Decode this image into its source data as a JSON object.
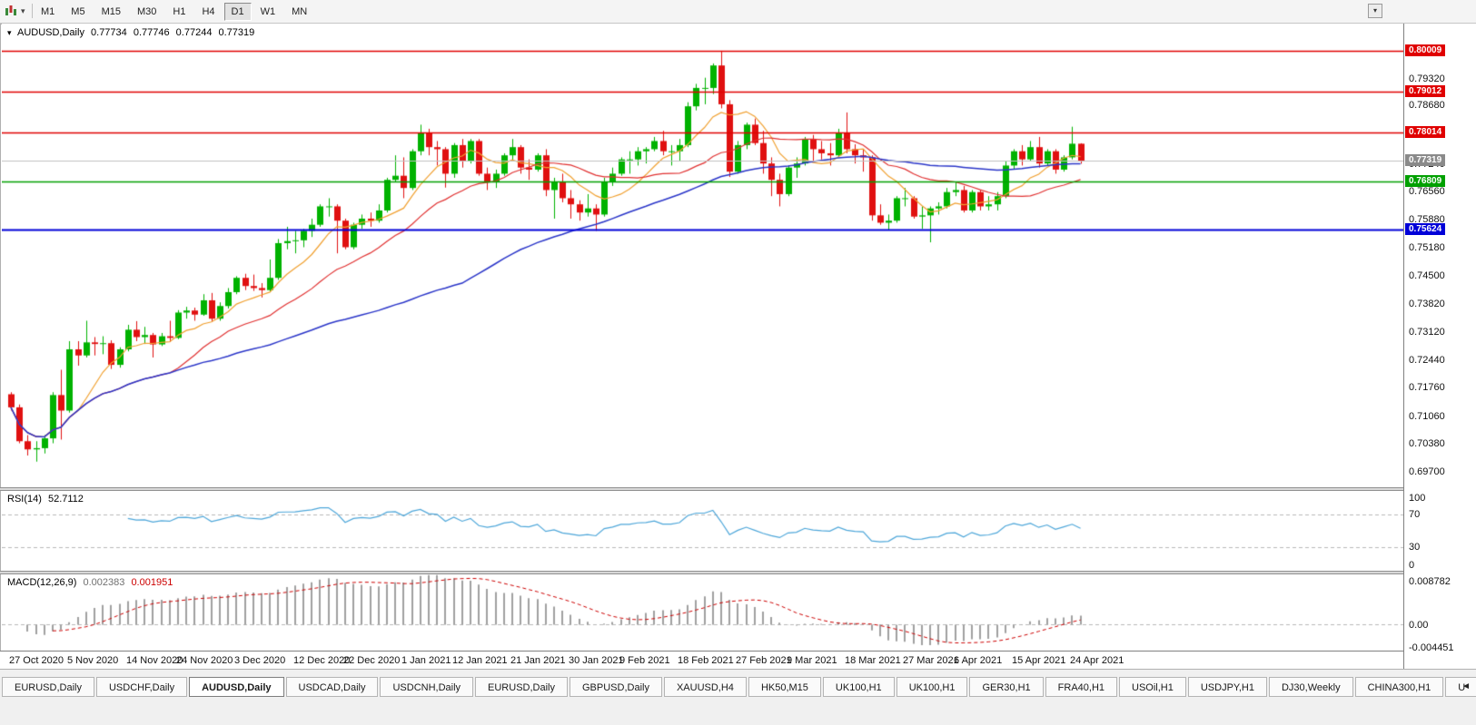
{
  "toolbar": {
    "timeframes": [
      "M1",
      "M5",
      "M15",
      "M30",
      "H1",
      "H4",
      "D1",
      "W1",
      "MN"
    ],
    "active_timeframe": "D1"
  },
  "icons": {
    "dropdown_caret": "▾",
    "window_button": "▾",
    "tab_scroll_left": "◄",
    "chart_expand": "▾"
  },
  "chart_header": {
    "symbol": "AUDUSD,Daily",
    "open": "0.77734",
    "high": "0.77746",
    "low": "0.77244",
    "close": "0.77319"
  },
  "y_axis_labels": [
    "0.79320",
    "0.78680",
    "0.77940",
    "0.77240",
    "0.76560",
    "0.75880",
    "0.75180",
    "0.74500",
    "0.73820",
    "0.73120",
    "0.72440",
    "0.71760",
    "0.71060",
    "0.70380",
    "0.69700"
  ],
  "levels": [
    {
      "tag": "0.80009",
      "price": 0.80009,
      "color": "#e00000",
      "type": "resistance"
    },
    {
      "tag": "0.79012",
      "price": 0.79012,
      "color": "#e00000",
      "type": "resistance"
    },
    {
      "tag": "0.78014",
      "price": 0.78014,
      "color": "#e00000",
      "type": "resistance"
    },
    {
      "tag": "0.76809",
      "price": 0.76809,
      "color": "#00a000",
      "type": "support"
    },
    {
      "tag": "0.75624",
      "price": 0.75624,
      "color": "#0000d8",
      "type": "support"
    }
  ],
  "current_price": {
    "tag": "0.77319",
    "price": 0.77319,
    "color": "#8a8a8a"
  },
  "x_axis_labels": [
    {
      "label": "27 Oct 2020",
      "index": 0
    },
    {
      "label": "5 Nov 2020",
      "index": 7
    },
    {
      "label": "14 Nov 2020",
      "index": 14
    },
    {
      "label": "24 Nov 2020",
      "index": 20
    },
    {
      "label": "3 Dec 2020",
      "index": 27
    },
    {
      "label": "12 Dec 2020",
      "index": 34
    },
    {
      "label": "22 Dec 2020",
      "index": 40
    },
    {
      "label": "1 Jan 2021",
      "index": 47
    },
    {
      "label": "12 Jan 2021",
      "index": 53
    },
    {
      "label": "21 Jan 2021",
      "index": 60
    },
    {
      "label": "30 Jan 2021",
      "index": 67
    },
    {
      "label": "9 Feb 2021",
      "index": 73
    },
    {
      "label": "18 Feb 2021",
      "index": 80
    },
    {
      "label": "27 Feb 2021",
      "index": 87
    },
    {
      "label": "9 Mar 2021",
      "index": 93
    },
    {
      "label": "18 Mar 2021",
      "index": 100
    },
    {
      "label": "27 Mar 2021",
      "index": 107
    },
    {
      "label": "6 Apr 2021",
      "index": 113
    },
    {
      "label": "15 Apr 2021",
      "index": 120
    },
    {
      "label": "24 Apr 2021",
      "index": 127
    }
  ],
  "rsi_panel": {
    "title": "RSI(14)",
    "value": "52.7112",
    "axis_labels": [
      "100",
      "70",
      "30",
      "0"
    ],
    "level_lines": [
      70,
      30
    ],
    "line_color": "#4da6d9"
  },
  "macd_panel": {
    "title": "MACD(12,26,9)",
    "main_value": "0.002383",
    "signal_value": "0.001951",
    "axis_labels": [
      {
        "label": "0.008782",
        "value": 0.008782
      },
      {
        "label": "0.00",
        "value": 0
      },
      {
        "label": "-0.004451",
        "value": -0.004451
      }
    ],
    "histogram_color": "#a0a0a0",
    "signal_color": "#cc0000"
  },
  "bottom_tabs": {
    "tabs": [
      {
        "label": "EURUSD,Daily",
        "active": false
      },
      {
        "label": "USDCHF,Daily",
        "active": false
      },
      {
        "label": "AUDUSD,Daily",
        "active": true
      },
      {
        "label": "USDCAD,Daily",
        "active": false
      },
      {
        "label": "USDCNH,Daily",
        "active": false
      },
      {
        "label": "EURUSD,Daily",
        "active": false
      },
      {
        "label": "GBPUSD,Daily",
        "active": false
      },
      {
        "label": "XAUUSD,H4",
        "active": false
      },
      {
        "label": "HK50,M15",
        "active": false
      },
      {
        "label": "UK100,H1",
        "active": false
      },
      {
        "label": "UK100,H1",
        "active": false
      },
      {
        "label": "GER30,H1",
        "active": false
      },
      {
        "label": "FRA40,H1",
        "active": false
      },
      {
        "label": "USOil,H1",
        "active": false
      },
      {
        "label": "USDJPY,H1",
        "active": false
      },
      {
        "label": "DJ30,Weekly",
        "active": false
      },
      {
        "label": "CHINA300,H1",
        "active": false
      },
      {
        "label": "U",
        "active": false
      }
    ]
  },
  "colors": {
    "bull": "#00b200",
    "bear": "#e01010",
    "price_line": "#c0c0c0",
    "grid_dash": "#b8b8b8"
  },
  "chart_data": {
    "type": "candlestick",
    "symbol": "AUDUSD",
    "timeframe": "Daily",
    "price_range": {
      "top": 0.80631,
      "bottom": 0.69367
    },
    "overlays": [
      {
        "name": "ma-fast",
        "period": 8,
        "color": "#f0a030"
      },
      {
        "name": "ma-mid",
        "period": 20,
        "color": "#e03030"
      },
      {
        "name": "ma-slow",
        "period": 55,
        "color": "#2a35c8"
      }
    ],
    "candles": [
      [
        0.716,
        0.7165,
        0.712,
        0.7128
      ],
      [
        0.7128,
        0.7135,
        0.704,
        0.7045
      ],
      [
        0.7045,
        0.706,
        0.701,
        0.7025
      ],
      [
        0.7025,
        0.7045,
        0.6995,
        0.7028
      ],
      [
        0.7028,
        0.706,
        0.7015,
        0.7052
      ],
      [
        0.7052,
        0.7165,
        0.704,
        0.7158
      ],
      [
        0.7158,
        0.722,
        0.7049,
        0.712
      ],
      [
        0.712,
        0.729,
        0.7115,
        0.727
      ],
      [
        0.727,
        0.729,
        0.723,
        0.7255
      ],
      [
        0.7255,
        0.734,
        0.725,
        0.7287
      ],
      [
        0.7287,
        0.73,
        0.7255,
        0.7283
      ],
      [
        0.7283,
        0.7302,
        0.7258,
        0.7285
      ],
      [
        0.7285,
        0.7292,
        0.7222,
        0.7232
      ],
      [
        0.7232,
        0.7275,
        0.7225,
        0.727
      ],
      [
        0.727,
        0.733,
        0.7265,
        0.7318
      ],
      [
        0.7318,
        0.7339,
        0.729,
        0.73
      ],
      [
        0.73,
        0.7325,
        0.7283,
        0.7305
      ],
      [
        0.7305,
        0.731,
        0.725,
        0.7282
      ],
      [
        0.7282,
        0.731,
        0.7278,
        0.7302
      ],
      [
        0.7302,
        0.734,
        0.7288,
        0.7298
      ],
      [
        0.7298,
        0.7366,
        0.7295,
        0.736
      ],
      [
        0.736,
        0.7374,
        0.7345,
        0.7365
      ],
      [
        0.7365,
        0.7372,
        0.734,
        0.7355
      ],
      [
        0.7355,
        0.7405,
        0.7352,
        0.739
      ],
      [
        0.739,
        0.7408,
        0.7338,
        0.7345
      ],
      [
        0.7345,
        0.7385,
        0.734,
        0.7376
      ],
      [
        0.7376,
        0.742,
        0.737,
        0.741
      ],
      [
        0.741,
        0.7449,
        0.7405,
        0.7445
      ],
      [
        0.7445,
        0.7455,
        0.7415,
        0.7425
      ],
      [
        0.7425,
        0.7453,
        0.7413,
        0.742
      ],
      [
        0.742,
        0.7432,
        0.7397,
        0.7415
      ],
      [
        0.7415,
        0.749,
        0.741,
        0.7445
      ],
      [
        0.7445,
        0.754,
        0.744,
        0.753
      ],
      [
        0.753,
        0.757,
        0.7515,
        0.7535
      ],
      [
        0.7535,
        0.756,
        0.7505,
        0.7537
      ],
      [
        0.7537,
        0.7565,
        0.752,
        0.756
      ],
      [
        0.756,
        0.759,
        0.7545,
        0.7575
      ],
      [
        0.7575,
        0.7625,
        0.757,
        0.762
      ],
      [
        0.762,
        0.764,
        0.7595,
        0.762
      ],
      [
        0.762,
        0.7625,
        0.7505,
        0.7585
      ],
      [
        0.7585,
        0.759,
        0.7515,
        0.752
      ],
      [
        0.752,
        0.758,
        0.7515,
        0.7575
      ],
      [
        0.7575,
        0.76,
        0.7565,
        0.759
      ],
      [
        0.759,
        0.7605,
        0.757,
        0.7585
      ],
      [
        0.7585,
        0.7625,
        0.758,
        0.761
      ],
      [
        0.761,
        0.769,
        0.7605,
        0.7685
      ],
      [
        0.7685,
        0.7745,
        0.768,
        0.7695
      ],
      [
        0.7695,
        0.774,
        0.764,
        0.7665
      ],
      [
        0.7665,
        0.776,
        0.766,
        0.7755
      ],
      [
        0.7755,
        0.782,
        0.7745,
        0.78
      ],
      [
        0.78,
        0.781,
        0.7745,
        0.7765
      ],
      [
        0.7765,
        0.778,
        0.772,
        0.776
      ],
      [
        0.776,
        0.7765,
        0.7666,
        0.77
      ],
      [
        0.77,
        0.7775,
        0.769,
        0.777
      ],
      [
        0.777,
        0.7785,
        0.7715,
        0.773
      ],
      [
        0.773,
        0.7785,
        0.7725,
        0.778
      ],
      [
        0.778,
        0.7785,
        0.7695,
        0.77
      ],
      [
        0.77,
        0.7715,
        0.766,
        0.768
      ],
      [
        0.768,
        0.771,
        0.7665,
        0.77
      ],
      [
        0.77,
        0.775,
        0.7695,
        0.7745
      ],
      [
        0.7745,
        0.7785,
        0.773,
        0.7765
      ],
      [
        0.7765,
        0.777,
        0.77,
        0.7715
      ],
      [
        0.7715,
        0.7735,
        0.7685,
        0.771
      ],
      [
        0.771,
        0.775,
        0.7705,
        0.7745
      ],
      [
        0.7745,
        0.776,
        0.7645,
        0.766
      ],
      [
        0.766,
        0.769,
        0.759,
        0.768
      ],
      [
        0.768,
        0.77,
        0.763,
        0.764
      ],
      [
        0.764,
        0.766,
        0.759,
        0.7625
      ],
      [
        0.7625,
        0.7635,
        0.7585,
        0.7605
      ],
      [
        0.7605,
        0.765,
        0.7595,
        0.7615
      ],
      [
        0.7615,
        0.7625,
        0.756,
        0.76
      ],
      [
        0.76,
        0.769,
        0.7595,
        0.768
      ],
      [
        0.768,
        0.7715,
        0.767,
        0.77
      ],
      [
        0.77,
        0.774,
        0.7695,
        0.7735
      ],
      [
        0.7735,
        0.7755,
        0.77,
        0.7735
      ],
      [
        0.7735,
        0.7765,
        0.772,
        0.7755
      ],
      [
        0.7755,
        0.7765,
        0.7725,
        0.776
      ],
      [
        0.776,
        0.779,
        0.7755,
        0.778
      ],
      [
        0.778,
        0.7805,
        0.7745,
        0.7755
      ],
      [
        0.7755,
        0.777,
        0.772,
        0.7755
      ],
      [
        0.7755,
        0.7785,
        0.773,
        0.777
      ],
      [
        0.777,
        0.7875,
        0.7765,
        0.7865
      ],
      [
        0.7865,
        0.792,
        0.7855,
        0.791
      ],
      [
        0.791,
        0.7935,
        0.787,
        0.791
      ],
      [
        0.791,
        0.797,
        0.7895,
        0.7965
      ],
      [
        0.7965,
        0.8001,
        0.786,
        0.787
      ],
      [
        0.787,
        0.788,
        0.7692,
        0.7705
      ],
      [
        0.7705,
        0.778,
        0.77,
        0.777
      ],
      [
        0.777,
        0.7825,
        0.776,
        0.782
      ],
      [
        0.782,
        0.7835,
        0.777,
        0.7775
      ],
      [
        0.7775,
        0.7805,
        0.77,
        0.7725
      ],
      [
        0.7725,
        0.774,
        0.7645,
        0.7685
      ],
      [
        0.7685,
        0.77,
        0.762,
        0.765
      ],
      [
        0.765,
        0.772,
        0.7645,
        0.7715
      ],
      [
        0.7715,
        0.774,
        0.769,
        0.7725
      ],
      [
        0.7725,
        0.779,
        0.772,
        0.7785
      ],
      [
        0.7785,
        0.7795,
        0.773,
        0.776
      ],
      [
        0.776,
        0.778,
        0.7735,
        0.775
      ],
      [
        0.775,
        0.7775,
        0.772,
        0.7745
      ],
      [
        0.7745,
        0.781,
        0.774,
        0.78
      ],
      [
        0.78,
        0.785,
        0.775,
        0.776
      ],
      [
        0.776,
        0.7772,
        0.7725,
        0.7745
      ],
      [
        0.7745,
        0.776,
        0.7705,
        0.774
      ],
      [
        0.774,
        0.7745,
        0.7585,
        0.7598
      ],
      [
        0.7598,
        0.7625,
        0.7575,
        0.758
      ],
      [
        0.758,
        0.76,
        0.7562,
        0.7585
      ],
      [
        0.7585,
        0.7645,
        0.758,
        0.764
      ],
      [
        0.764,
        0.7665,
        0.762,
        0.764
      ],
      [
        0.764,
        0.7645,
        0.759,
        0.7595
      ],
      [
        0.7595,
        0.762,
        0.7565,
        0.7598
      ],
      [
        0.7598,
        0.762,
        0.7532,
        0.7615
      ],
      [
        0.7615,
        0.763,
        0.76,
        0.762
      ],
      [
        0.762,
        0.7665,
        0.7615,
        0.7655
      ],
      [
        0.7655,
        0.768,
        0.7645,
        0.766
      ],
      [
        0.766,
        0.767,
        0.7605,
        0.761
      ],
      [
        0.761,
        0.766,
        0.7605,
        0.7655
      ],
      [
        0.7655,
        0.766,
        0.761,
        0.762
      ],
      [
        0.762,
        0.7645,
        0.761,
        0.7625
      ],
      [
        0.7625,
        0.7655,
        0.761,
        0.7645
      ],
      [
        0.7645,
        0.773,
        0.764,
        0.772
      ],
      [
        0.772,
        0.776,
        0.771,
        0.7755
      ],
      [
        0.7755,
        0.777,
        0.772,
        0.7735
      ],
      [
        0.7735,
        0.778,
        0.773,
        0.7765
      ],
      [
        0.7765,
        0.779,
        0.7715,
        0.7725
      ],
      [
        0.7725,
        0.776,
        0.772,
        0.7755
      ],
      [
        0.7755,
        0.776,
        0.77,
        0.771
      ],
      [
        0.771,
        0.7745,
        0.7705,
        0.774
      ],
      [
        0.774,
        0.7815,
        0.7735,
        0.77734
      ],
      [
        0.77734,
        0.77746,
        0.77244,
        0.77319
      ]
    ]
  }
}
